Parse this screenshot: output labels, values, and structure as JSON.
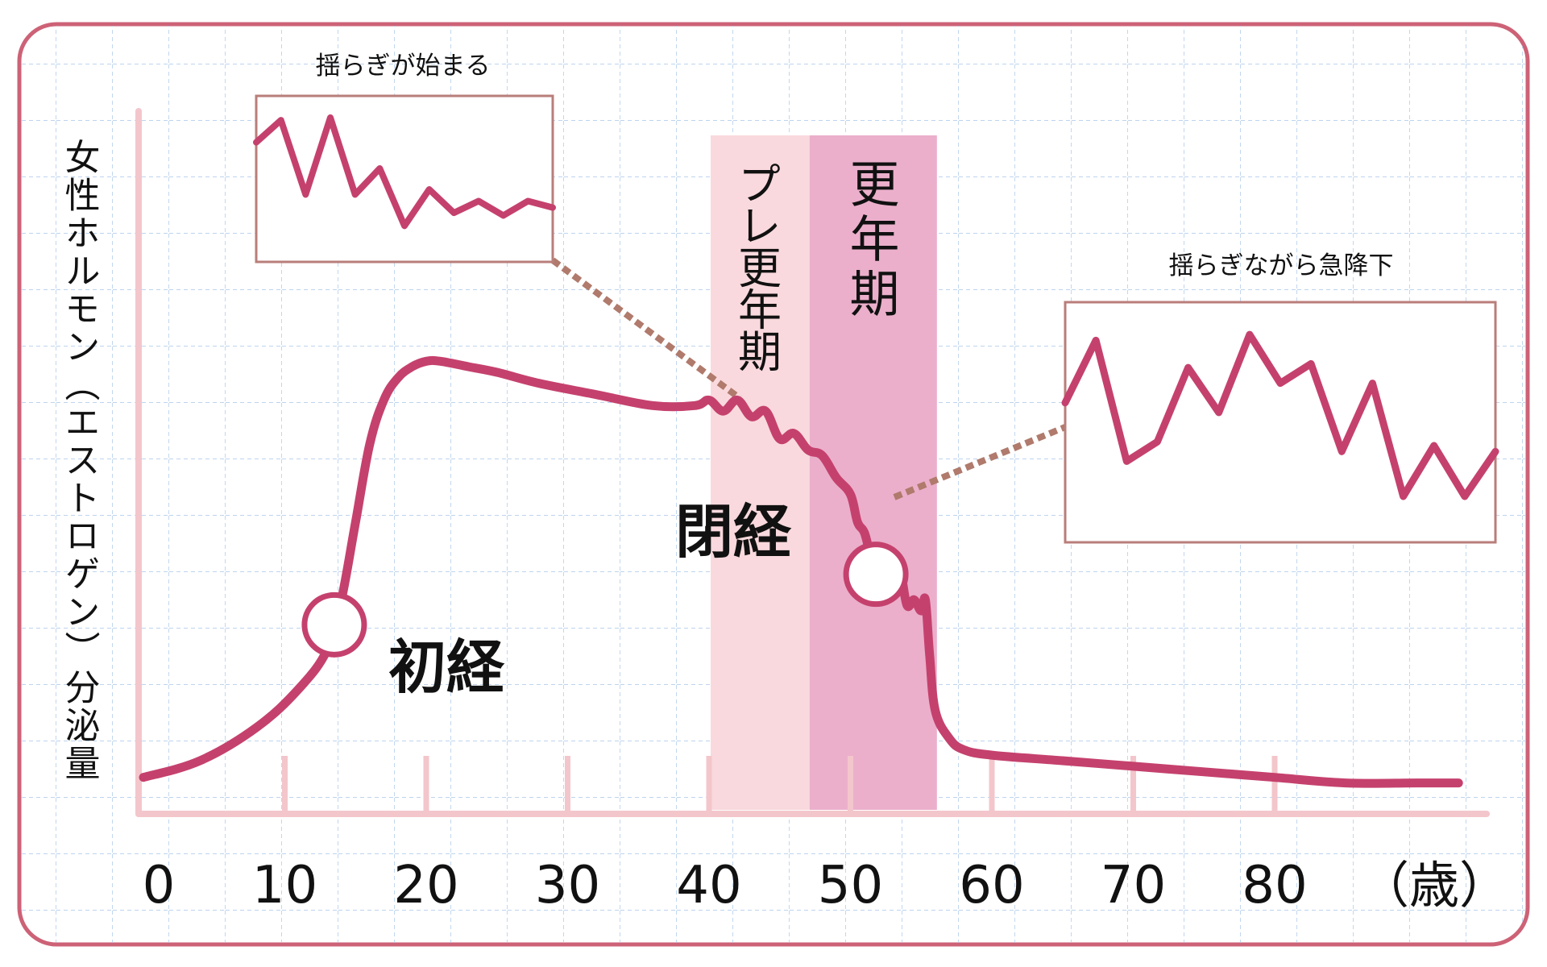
{
  "chart_data": {
    "type": "line",
    "ylabel": "女性ホルモン（エストロゲン）分泌量",
    "x_unit": "（歳）",
    "x_ticks": [
      0,
      10,
      20,
      30,
      40,
      50,
      60,
      70,
      80
    ],
    "xlim": [
      0,
      95
    ],
    "grid": true,
    "series": [
      {
        "x": [
          0,
          4,
          8,
          11,
          13,
          14,
          15,
          16,
          17,
          18,
          19,
          20,
          21,
          23,
          25,
          28,
          32,
          36,
          39,
          40,
          41,
          42,
          43,
          44,
          45,
          46,
          47,
          48,
          49,
          50,
          50.5,
          51,
          51.5,
          52,
          52.5,
          53,
          53.5,
          54,
          54.5,
          55,
          55.3,
          55.6,
          56,
          57,
          58,
          60,
          65,
          70,
          75,
          80,
          85,
          90,
          93
        ],
        "y": [
          0.06,
          0.09,
          0.15,
          0.22,
          0.29,
          0.38,
          0.52,
          0.66,
          0.74,
          0.78,
          0.8,
          0.81,
          0.81,
          0.8,
          0.79,
          0.77,
          0.75,
          0.73,
          0.73,
          0.74,
          0.72,
          0.74,
          0.71,
          0.72,
          0.67,
          0.68,
          0.65,
          0.64,
          0.6,
          0.57,
          0.52,
          0.5,
          0.45,
          0.41,
          0.44,
          0.39,
          0.43,
          0.37,
          0.38,
          0.36,
          0.38,
          0.28,
          0.18,
          0.13,
          0.11,
          0.1,
          0.09,
          0.08,
          0.07,
          0.06,
          0.05,
          0.05,
          0.05
        ]
      }
    ],
    "annotations": {
      "menarche": "初経",
      "menopause": "閉経",
      "pre_menopause": "プレ更年期",
      "menopause_period": "更年期",
      "inset_left_title": "揺らぎが始まる",
      "inset_right_title": "揺らぎながら急降下"
    },
    "periods": [
      {
        "label": "プレ更年期",
        "from": 40,
        "to": 47,
        "color": "#f9d9dd"
      },
      {
        "label": "更年期",
        "from": 47,
        "to": 56,
        "color": "#ebafcb"
      }
    ],
    "markers": [
      {
        "label": "初経",
        "x": 13.5
      },
      {
        "label": "閉経",
        "x": 51.8
      }
    ],
    "inset_left_values": [
      0.78,
      0.95,
      0.38,
      0.97,
      0.38,
      0.58,
      0.14,
      0.42,
      0.24,
      0.33,
      0.22,
      0.33,
      0.28
    ],
    "inset_right_values": [
      0.6,
      0.92,
      0.3,
      0.4,
      0.78,
      0.55,
      0.95,
      0.7,
      0.8,
      0.35,
      0.7,
      0.12,
      0.38,
      0.12,
      0.35
    ],
    "colors": {
      "curve": "#c5416d",
      "frame": "#cd6277",
      "axis": "#f3c6cb",
      "grid": "#a9c6e8",
      "pre_band": "#f9d9dd",
      "meno_band": "#ebafcb",
      "inset_border": "#b97e7a",
      "leader": "#b07a6c"
    }
  }
}
